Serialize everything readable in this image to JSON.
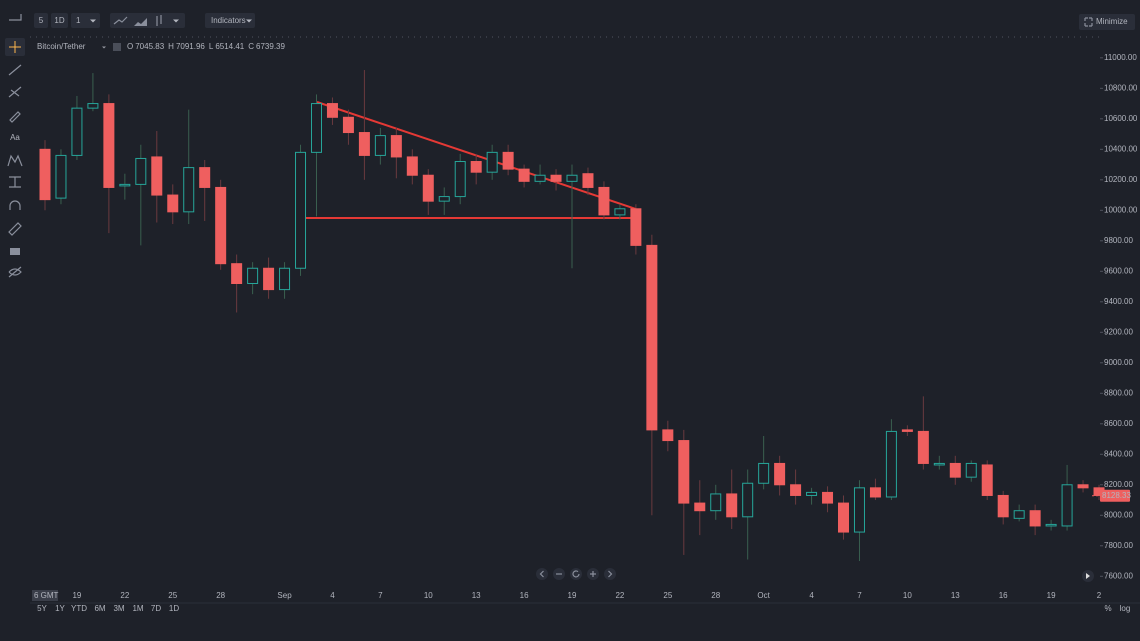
{
  "ui": {
    "interval": "5",
    "timeframe": "1D",
    "multiplier": "1",
    "indicators": "Indicators",
    "minimize": "Minimize",
    "symbol": "Bitcoin/Tether",
    "ohlc": [
      {
        "key": "O",
        "value": "7045.83"
      },
      {
        "key": "H",
        "value": "7091.96"
      },
      {
        "key": "L",
        "value": "6514.41"
      },
      {
        "key": "C",
        "value": "6739.39"
      }
    ],
    "text_tool": "Aa",
    "timezone": "6 GMT",
    "ranges": [
      "5Y",
      "1Y",
      "YTD",
      "6M",
      "3M",
      "1M",
      "7D",
      "1D"
    ],
    "percent": "%",
    "log": "log"
  },
  "chart_data": {
    "type": "candlestick",
    "up_color": "#26a69a",
    "down_color": "#ef5f5f",
    "categories": [
      null,
      null,
      "19",
      null,
      null,
      "22",
      null,
      null,
      "25",
      null,
      null,
      "28",
      null,
      null,
      null,
      "Sep",
      null,
      null,
      "4",
      null,
      null,
      "7",
      null,
      null,
      "10",
      null,
      null,
      "13",
      null,
      null,
      "16",
      null,
      null,
      "19",
      null,
      null,
      "22",
      null,
      null,
      "25",
      null,
      null,
      "28",
      null,
      null,
      "Oct",
      null,
      null,
      "4",
      null,
      null,
      "7",
      null,
      null,
      "10",
      null,
      null,
      "13",
      null,
      null,
      "16",
      null,
      null,
      "19",
      null,
      null,
      "2"
    ],
    "open": [
      10400,
      10080,
      10360,
      10670,
      10700,
      10160,
      10170,
      10350,
      10100,
      9990,
      10280,
      10150,
      9650,
      9520,
      9620,
      9480,
      9620,
      10380,
      10700,
      10610,
      10510,
      10360,
      10490,
      10350,
      10230,
      10060,
      10090,
      10320,
      10250,
      10380,
      10270,
      10190,
      10230,
      10190,
      10240,
      10150,
      9970,
      10010,
      9770,
      8560,
      8490,
      8080,
      8030,
      8140,
      7990,
      8210,
      8340,
      8200,
      8130,
      8150,
      8080,
      7890,
      8180,
      8120,
      8560,
      8550,
      8330,
      8340,
      8250,
      8330,
      8130,
      7980,
      8030,
      7930,
      7930,
      8200,
      8180
    ],
    "high": [
      10460,
      10400,
      10750,
      10900,
      10760,
      10240,
      10430,
      10520,
      10170,
      10660,
      10330,
      10200,
      9710,
      9660,
      9690,
      9660,
      10430,
      10760,
      10740,
      10660,
      10920,
      10540,
      10540,
      10400,
      10270,
      10150,
      10370,
      10370,
      10430,
      10430,
      10300,
      10300,
      10270,
      10300,
      10280,
      10190,
      10040,
      10040,
      9840,
      8620,
      8560,
      8230,
      8200,
      8300,
      8300,
      8520,
      8390,
      8300,
      8180,
      8190,
      8130,
      8230,
      8240,
      8630,
      8590,
      8780,
      8390,
      8390,
      8360,
      8360,
      8160,
      8070,
      8070,
      7970,
      8330,
      8230,
      8200
    ],
    "low": [
      10000,
      10040,
      10330,
      10650,
      9850,
      10070,
      9770,
      9920,
      9910,
      9910,
      9930,
      9610,
      9330,
      9450,
      9420,
      9420,
      9570,
      9960,
      10560,
      10430,
      10200,
      10300,
      10210,
      10170,
      9970,
      9970,
      10040,
      10170,
      10200,
      10230,
      10150,
      10170,
      10130,
      9620,
      10100,
      9940,
      9940,
      9710,
      8000,
      8420,
      7740,
      7870,
      7970,
      7910,
      7710,
      8170,
      8130,
      8070,
      8070,
      8020,
      7840,
      7700,
      8100,
      8100,
      8520,
      8300,
      8300,
      8200,
      8220,
      8100,
      7940,
      7960,
      7870,
      7900,
      7900,
      8150,
      8100
    ],
    "close": [
      10070,
      10360,
      10670,
      10700,
      10150,
      10170,
      10340,
      10100,
      9990,
      10280,
      10150,
      9650,
      9520,
      9620,
      9480,
      9620,
      10380,
      10700,
      10610,
      10510,
      10360,
      10490,
      10350,
      10230,
      10060,
      10090,
      10320,
      10250,
      10380,
      10270,
      10190,
      10230,
      10190,
      10230,
      10150,
      9970,
      10010,
      9770,
      8560,
      8490,
      8080,
      8030,
      8140,
      7990,
      8210,
      8340,
      8200,
      8130,
      8150,
      8080,
      7890,
      8180,
      8120,
      8550,
      8550,
      8340,
      8340,
      8250,
      8340,
      8130,
      7990,
      8030,
      7930,
      7940,
      8200,
      8180,
      8130
    ],
    "last_price": 8128.33,
    "ylim": [
      7510,
      11130
    ],
    "yticks": [
      {
        "value": 7600,
        "label": "7600.00"
      },
      {
        "value": 7800,
        "label": "7800.00"
      },
      {
        "value": 8000,
        "label": "8000.00"
      },
      {
        "value": 8200,
        "label": "8200.00"
      },
      {
        "value": 8400,
        "label": "8400.00"
      },
      {
        "value": 8600,
        "label": "8600.00"
      },
      {
        "value": 8800,
        "label": "8800.00"
      },
      {
        "value": 9000,
        "label": "9000.00"
      },
      {
        "value": 9200,
        "label": "9200.00"
      },
      {
        "value": 9400,
        "label": "9400.00"
      },
      {
        "value": 9600,
        "label": "9600.00"
      },
      {
        "value": 9800,
        "label": "9800.00"
      },
      {
        "value": 10000,
        "label": "10000.00"
      },
      {
        "value": 10200,
        "label": "10200.00"
      },
      {
        "value": 10400,
        "label": "10400.00"
      },
      {
        "value": 10600,
        "label": "10600.00"
      },
      {
        "value": 10800,
        "label": "10800.00"
      },
      {
        "value": 11000,
        "label": "11000.00"
      }
    ]
  }
}
